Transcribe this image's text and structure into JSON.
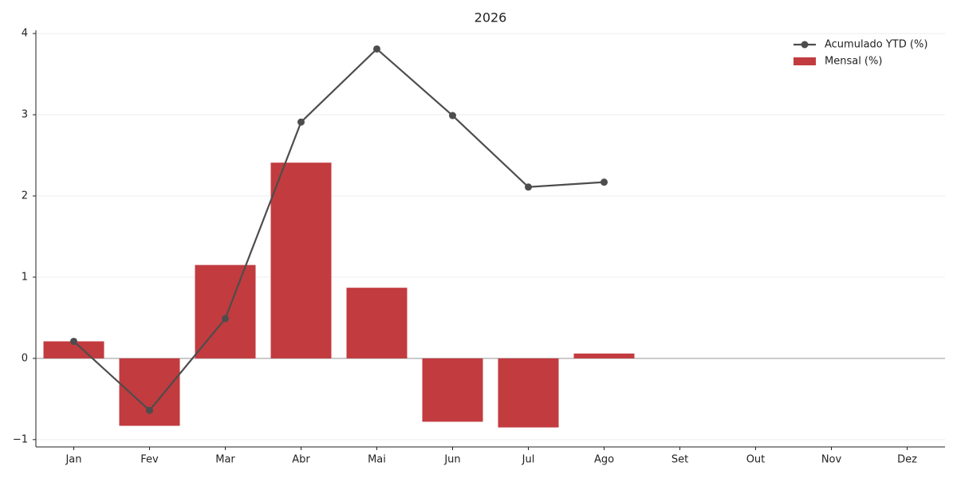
{
  "chart_data": {
    "type": "bar",
    "title": "2026",
    "categories": [
      "Jan",
      "Fev",
      "Mar",
      "Abr",
      "Mai",
      "Jun",
      "Jul",
      "Ago",
      "Set",
      "Out",
      "Nov",
      "Dez"
    ],
    "series": [
      {
        "name": "Acumulado YTD (%)",
        "type": "line",
        "color": "#4d4d4d",
        "values": [
          0.21,
          -0.64,
          0.49,
          2.91,
          3.81,
          2.99,
          2.11,
          2.17,
          null,
          null,
          null,
          null
        ]
      },
      {
        "name": "Mensal (%)",
        "type": "bar",
        "color": "#c23b3f",
        "values": [
          0.21,
          -0.83,
          1.15,
          2.41,
          0.87,
          -0.78,
          -0.85,
          0.06,
          null,
          null,
          null,
          null
        ]
      }
    ],
    "ylim": [
      -1.09,
      4.04
    ],
    "yticks": [
      {
        "value": -1,
        "label": "−1"
      },
      0,
      1,
      2,
      3,
      4
    ],
    "grid": true,
    "legend": "upper right"
  }
}
